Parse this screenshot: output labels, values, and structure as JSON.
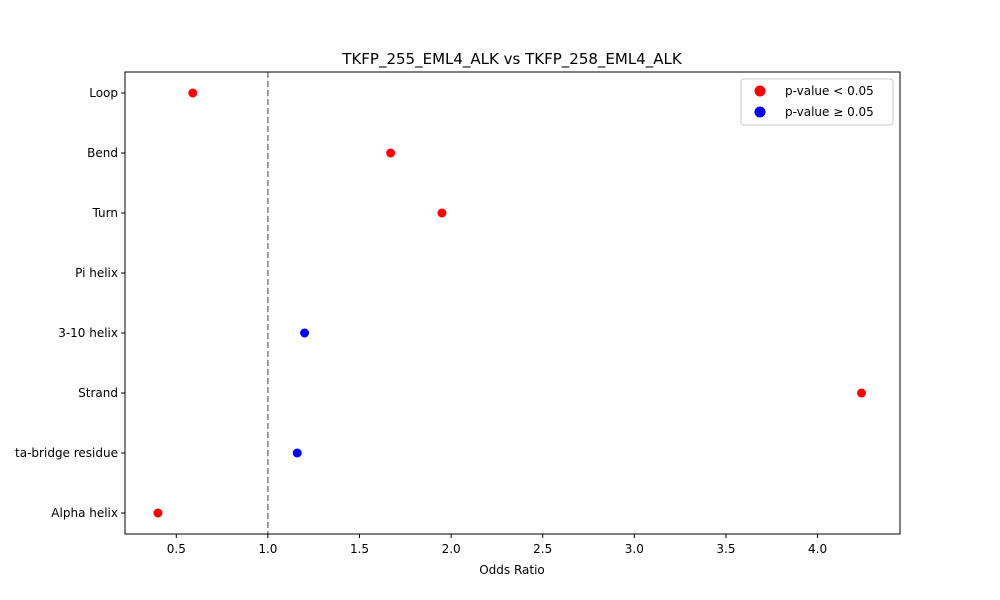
{
  "chart_data": {
    "type": "scatter",
    "title": "TKFP_255_EML4_ALK vs TKFP_258_EML4_ALK",
    "xlabel": "Odds Ratio",
    "ylabel": "",
    "xlim": [
      0.22,
      4.45
    ],
    "xticks": [
      0.5,
      1.0,
      1.5,
      2.0,
      2.5,
      3.0,
      3.5,
      4.0
    ],
    "xtick_labels": [
      "0.5",
      "1.0",
      "1.5",
      "2.0",
      "2.5",
      "3.0",
      "3.5",
      "4.0"
    ],
    "categories": [
      "Loop",
      "Bend",
      "Turn",
      "Pi helix",
      "3-10 helix",
      "Strand",
      "Isolated beta-bridge residue",
      "Alpha helix"
    ],
    "ytick_labels_visible": [
      "Loop",
      "Bend",
      "Turn",
      "Pi helix",
      "3-10 helix",
      "Strand",
      "ta-bridge residue",
      "Alpha helix"
    ],
    "points": [
      {
        "category": "Loop",
        "odds_ratio": 0.59,
        "significant": true
      },
      {
        "category": "Bend",
        "odds_ratio": 1.67,
        "significant": true
      },
      {
        "category": "Turn",
        "odds_ratio": 1.95,
        "significant": true
      },
      {
        "category": "Pi helix",
        "odds_ratio": null,
        "significant": null
      },
      {
        "category": "3-10 helix",
        "odds_ratio": 1.2,
        "significant": false
      },
      {
        "category": "Strand",
        "odds_ratio": 4.24,
        "significant": true
      },
      {
        "category": "Isolated beta-bridge residue",
        "odds_ratio": 1.16,
        "significant": false
      },
      {
        "category": "Alpha helix",
        "odds_ratio": 0.4,
        "significant": true
      }
    ],
    "reference_line": {
      "x": 1.0,
      "style": "dashed",
      "color": "#808080"
    },
    "legend": {
      "position": "upper right",
      "entries": [
        {
          "label": "p-value < 0.05",
          "color": "#ff0000"
        },
        {
          "label": "p-value ≥ 0.05",
          "color": "#0000ff"
        }
      ]
    },
    "colors": {
      "significant": "#ff0000",
      "not_significant": "#0000ff"
    },
    "grid": false
  }
}
